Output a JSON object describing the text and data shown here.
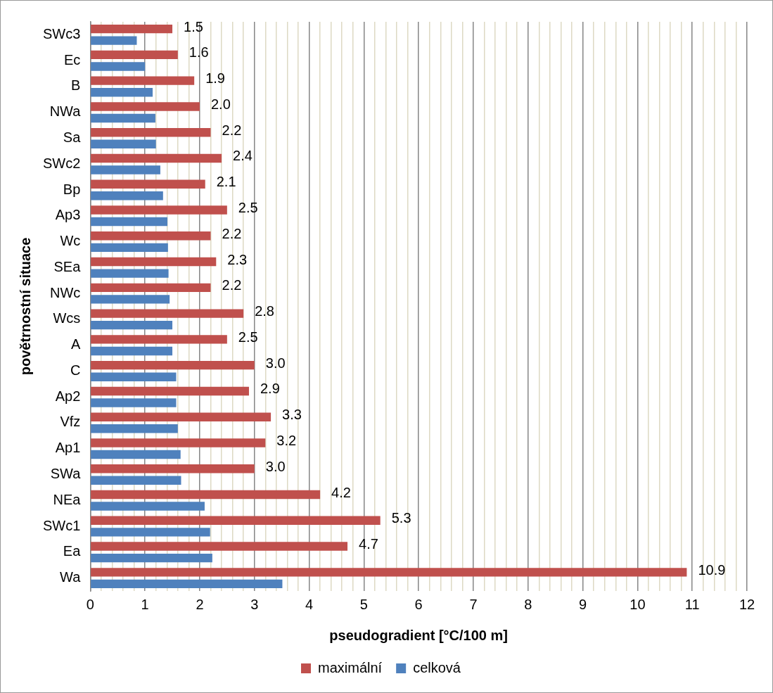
{
  "chart_data": {
    "type": "bar",
    "orientation": "horizontal",
    "xlabel": "pseudogradient [°C/100 m]",
    "ylabel": "povětrnostní situace",
    "categories": [
      "SWc3",
      "Ec",
      "B",
      "NWa",
      "Sa",
      "SWc2",
      "Bp",
      "Ap3",
      "Wc",
      "SEa",
      "NWc",
      "Wcs",
      "A",
      "C",
      "Ap2",
      "Vfz",
      "Ap1",
      "SWa",
      "NEa",
      "SWc1",
      "Ea",
      "Wa"
    ],
    "series": [
      {
        "name": "maximální",
        "color": "#c0504d",
        "values": [
          1.5,
          1.6,
          1.9,
          2.0,
          2.2,
          2.4,
          2.1,
          2.5,
          2.2,
          2.3,
          2.2,
          2.8,
          2.5,
          3.0,
          2.9,
          3.3,
          3.2,
          3.0,
          4.2,
          5.3,
          4.7,
          10.9
        ],
        "value_labels": [
          "1.5",
          "1.6",
          "1.9",
          "2.0",
          "2.2",
          "2.4",
          "2.1",
          "2.5",
          "2.2",
          "2.3",
          "2.2",
          "2.8",
          "2.5",
          "3.0",
          "2.9",
          "3.3",
          "3.2",
          "3.0",
          "4.2",
          "5.3",
          "4.7",
          "10.9"
        ]
      },
      {
        "name": "celková",
        "color": "#4f81bd",
        "values": [
          0.85,
          1.0,
          1.14,
          1.19,
          1.2,
          1.28,
          1.33,
          1.41,
          1.42,
          1.43,
          1.45,
          1.5,
          1.5,
          1.57,
          1.57,
          1.6,
          1.65,
          1.66,
          2.09,
          2.19,
          2.23,
          3.51
        ]
      }
    ],
    "xlim": [
      0,
      12
    ],
    "xticks": [
      0,
      {
        "value": 0.2,
        "label": null
      },
      {
        "value": 0.4,
        "label": null
      },
      {
        "value": 0.6,
        "label": null
      },
      {
        "value": 0.8,
        "label": null
      },
      1,
      {
        "value": 1.2,
        "label": null
      },
      {
        "value": 1.4,
        "label": null
      },
      {
        "value": 1.6,
        "label": null
      },
      {
        "value": 1.8,
        "label": null
      },
      2,
      {
        "value": 2.2,
        "label": null
      },
      {
        "value": 2.4,
        "label": null
      },
      {
        "value": 2.6,
        "label": null
      },
      {
        "value": 2.8,
        "label": null
      },
      3,
      {
        "value": 3.2,
        "label": null
      },
      {
        "value": 3.4,
        "label": null
      },
      {
        "value": 3.6,
        "label": null
      },
      {
        "value": 3.8,
        "label": null
      },
      4,
      {
        "value": 4.2,
        "label": null
      },
      {
        "value": 4.4,
        "label": null
      },
      {
        "value": 4.6,
        "label": null
      },
      {
        "value": 4.8,
        "label": null
      },
      5,
      {
        "value": 5.2,
        "label": null
      },
      {
        "value": 5.4,
        "label": null
      },
      {
        "value": 5.6,
        "label": null
      },
      {
        "value": 5.8,
        "label": null
      },
      6,
      {
        "value": 6.2,
        "label": null
      },
      {
        "value": 6.4,
        "label": null
      },
      {
        "value": 6.6,
        "label": null
      },
      {
        "value": 6.8,
        "label": null
      },
      7,
      {
        "value": 7.2,
        "label": null
      },
      {
        "value": 7.4,
        "label": null
      },
      {
        "value": 7.6,
        "label": null
      },
      {
        "value": 7.8,
        "label": null
      },
      8,
      {
        "value": 8.2,
        "label": null
      },
      {
        "value": 8.4,
        "label": null
      },
      {
        "value": 8.6,
        "label": null
      },
      {
        "value": 8.8,
        "label": null
      },
      9,
      {
        "value": 9.2,
        "label": null
      },
      {
        "value": 9.4,
        "label": null
      },
      {
        "value": 9.6,
        "label": null
      },
      {
        "value": 9.8,
        "label": null
      },
      10,
      {
        "value": 10.2,
        "label": null
      },
      {
        "value": 10.4,
        "label": null
      },
      {
        "value": 10.6,
        "label": null
      },
      {
        "value": 10.8,
        "label": null
      },
      11,
      {
        "value": 11.2,
        "label": null
      },
      {
        "value": 11.4,
        "label": null
      },
      {
        "value": 11.6,
        "label": null
      },
      {
        "value": 11.8,
        "label": null
      },
      12
    ],
    "grid": "x",
    "legend": "bottom"
  }
}
